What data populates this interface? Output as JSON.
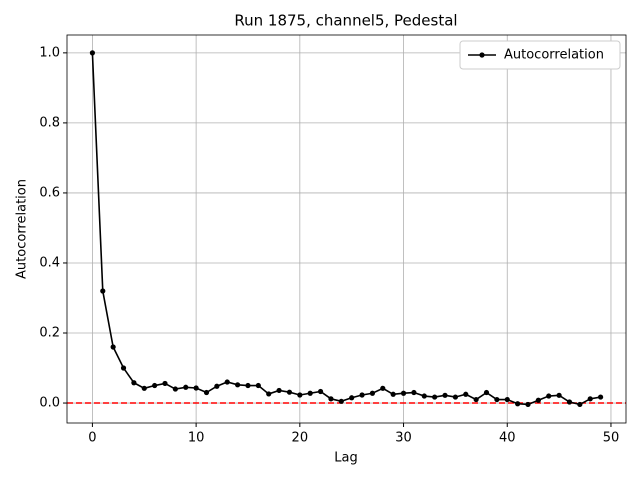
{
  "chart_data": {
    "type": "line",
    "title": "Run 1875, channel5, Pedestal",
    "x_label": "Lag",
    "y_label": "Autocorrelation",
    "x": [
      0,
      1,
      2,
      3,
      4,
      5,
      6,
      7,
      8,
      9,
      10,
      11,
      12,
      13,
      14,
      15,
      16,
      17,
      18,
      19,
      20,
      21,
      22,
      23,
      24,
      25,
      26,
      27,
      28,
      29,
      30,
      31,
      32,
      33,
      34,
      35,
      36,
      37,
      38,
      39,
      40,
      41,
      42,
      43,
      44,
      45,
      46,
      47,
      48,
      49
    ],
    "series": [
      {
        "name": "Autocorrelation",
        "color": "#000000",
        "values": [
          1.0,
          0.32,
          0.16,
          0.1,
          0.058,
          0.042,
          0.05,
          0.056,
          0.04,
          0.045,
          0.043,
          0.03,
          0.048,
          0.06,
          0.052,
          0.05,
          0.05,
          0.026,
          0.036,
          0.031,
          0.023,
          0.028,
          0.033,
          0.012,
          0.005,
          0.015,
          0.023,
          0.028,
          0.042,
          0.025,
          0.028,
          0.03,
          0.02,
          0.017,
          0.022,
          0.017,
          0.025,
          0.01,
          0.03,
          0.01,
          0.01,
          -0.002,
          -0.004,
          0.008,
          0.02,
          0.022,
          0.003,
          -0.004,
          0.012,
          0.017
        ]
      }
    ],
    "reference_line": {
      "value": 0,
      "color": "#ff0000"
    },
    "xlim": [
      -2.45,
      51.45
    ],
    "xticks": [
      0,
      10,
      20,
      30,
      40,
      50
    ],
    "ylim": [
      -0.057,
      1.051
    ],
    "yticks": [
      {
        "value": 0,
        "label": "0.0"
      },
      0.2,
      0.4,
      0.6,
      0.8,
      {
        "value": 1,
        "label": "1.0"
      }
    ],
    "grid": true,
    "legend": "upper right"
  }
}
